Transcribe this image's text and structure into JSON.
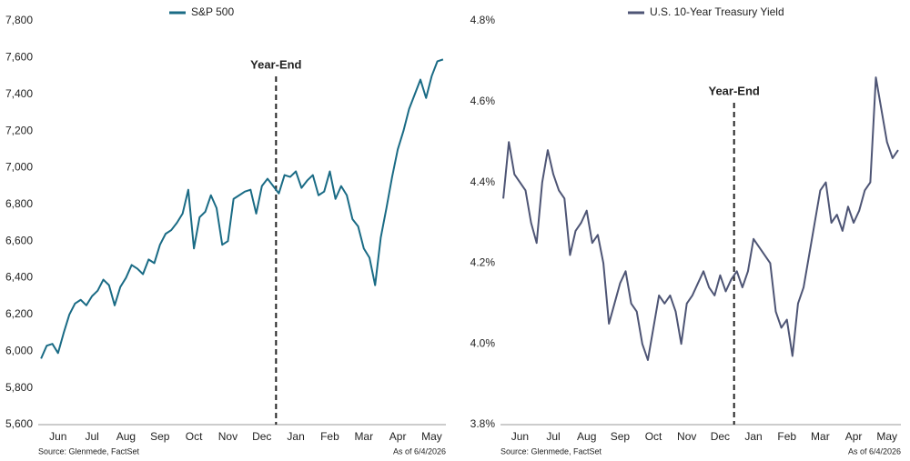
{
  "chart_data": [
    {
      "type": "line",
      "categories": [
        null,
        null,
        null,
        "Jun",
        null,
        null,
        null,
        null,
        null,
        "Jul",
        null,
        null,
        null,
        null,
        null,
        "Aug",
        null,
        null,
        null,
        null,
        null,
        "Sep",
        null,
        null,
        null,
        null,
        null,
        "Oct",
        null,
        null,
        null,
        null,
        null,
        "Nov",
        null,
        null,
        null,
        null,
        null,
        "Dec",
        null,
        null,
        null,
        null,
        null,
        "Jan",
        null,
        null,
        null,
        null,
        null,
        "Feb",
        null,
        null,
        null,
        null,
        null,
        "Mar",
        null,
        null,
        null,
        null,
        null,
        "Apr",
        null,
        null,
        null,
        null,
        null,
        "May",
        null,
        null
      ],
      "series": [
        {
          "name": "S&P 500",
          "color": "#1a6b85",
          "values": [
            5960,
            6030,
            6040,
            5990,
            6100,
            6200,
            6260,
            6280,
            6250,
            6300,
            6330,
            6390,
            6360,
            6250,
            6350,
            6400,
            6470,
            6450,
            6420,
            6500,
            6480,
            6580,
            6640,
            6660,
            6700,
            6750,
            6880,
            6560,
            6730,
            6760,
            6850,
            6780,
            6580,
            6600,
            6830,
            6850,
            6870,
            6880,
            6750,
            6900,
            6940,
            6900,
            6860,
            6960,
            6950,
            6980,
            6890,
            6930,
            6960,
            6850,
            6870,
            6980,
            6830,
            6900,
            6850,
            6720,
            6680,
            6560,
            6510,
            6360,
            6620,
            6780,
            6950,
            7100,
            7200,
            7320,
            7400,
            7480,
            7380,
            7500,
            7580,
            7590
          ]
        }
      ],
      "ylim": [
        5600,
        7800
      ],
      "yticks": [
        {
          "value": 5600,
          "label": "5,600"
        },
        {
          "value": 5800,
          "label": "5,800"
        },
        {
          "value": 6000,
          "label": "6,000"
        },
        {
          "value": 6200,
          "label": "6,200"
        },
        {
          "value": 6400,
          "label": "6,400"
        },
        {
          "value": 6600,
          "label": "6,600"
        },
        {
          "value": 6800,
          "label": "6,800"
        },
        {
          "value": 7000,
          "label": "7,000"
        },
        {
          "value": 7200,
          "label": "7,200"
        },
        {
          "value": 7400,
          "label": "7,400"
        },
        {
          "value": 7600,
          "label": "7,600"
        },
        {
          "value": 7800,
          "label": "7,800"
        }
      ],
      "annotations": [
        {
          "text": "Year-End",
          "x": 41.5
        }
      ],
      "source": "Source: Glenmede, FactSet",
      "note": "As of 6/4/2026"
    },
    {
      "type": "line",
      "categories": [
        null,
        null,
        null,
        "Jun",
        null,
        null,
        null,
        null,
        null,
        "Jul",
        null,
        null,
        null,
        null,
        null,
        "Aug",
        null,
        null,
        null,
        null,
        null,
        "Sep",
        null,
        null,
        null,
        null,
        null,
        "Oct",
        null,
        null,
        null,
        null,
        null,
        "Nov",
        null,
        null,
        null,
        null,
        null,
        "Dec",
        null,
        null,
        null,
        null,
        null,
        "Jan",
        null,
        null,
        null,
        null,
        null,
        "Feb",
        null,
        null,
        null,
        null,
        null,
        "Mar",
        null,
        null,
        null,
        null,
        null,
        "Apr",
        null,
        null,
        null,
        null,
        null,
        "May",
        null,
        null
      ],
      "series": [
        {
          "name": "U.S. 10-Year Treasury Yield",
          "color": "#4e5575",
          "values": [
            4.36,
            4.5,
            4.42,
            4.4,
            4.38,
            4.3,
            4.25,
            4.4,
            4.48,
            4.42,
            4.38,
            4.36,
            4.22,
            4.28,
            4.3,
            4.33,
            4.25,
            4.27,
            4.2,
            4.05,
            4.1,
            4.15,
            4.18,
            4.1,
            4.08,
            4.0,
            3.96,
            4.04,
            4.12,
            4.1,
            4.12,
            4.08,
            4.0,
            4.1,
            4.12,
            4.15,
            4.18,
            4.14,
            4.12,
            4.17,
            4.13,
            4.16,
            4.18,
            4.14,
            4.18,
            4.26,
            4.24,
            4.22,
            4.2,
            4.08,
            4.04,
            4.06,
            3.97,
            4.1,
            4.14,
            4.22,
            4.3,
            4.38,
            4.4,
            4.3,
            4.32,
            4.28,
            4.34,
            4.3,
            4.33,
            4.38,
            4.4,
            4.66,
            4.58,
            4.5,
            4.46,
            4.48
          ]
        }
      ],
      "ylim": [
        3.8,
        4.8
      ],
      "yticks": [
        {
          "value": 3.8,
          "label": "3.8%"
        },
        {
          "value": 4.0,
          "label": "4.0%"
        },
        {
          "value": 4.2,
          "label": "4.2%"
        },
        {
          "value": 4.4,
          "label": "4.4%"
        },
        {
          "value": 4.6,
          "label": "4.6%"
        },
        {
          "value": 4.8,
          "label": "4.8%"
        }
      ],
      "annotations": [
        {
          "text": "Year-End",
          "x": 41.5
        }
      ],
      "source": "Source: Glenmede, FactSet",
      "note": "As of 6/4/2026"
    }
  ]
}
